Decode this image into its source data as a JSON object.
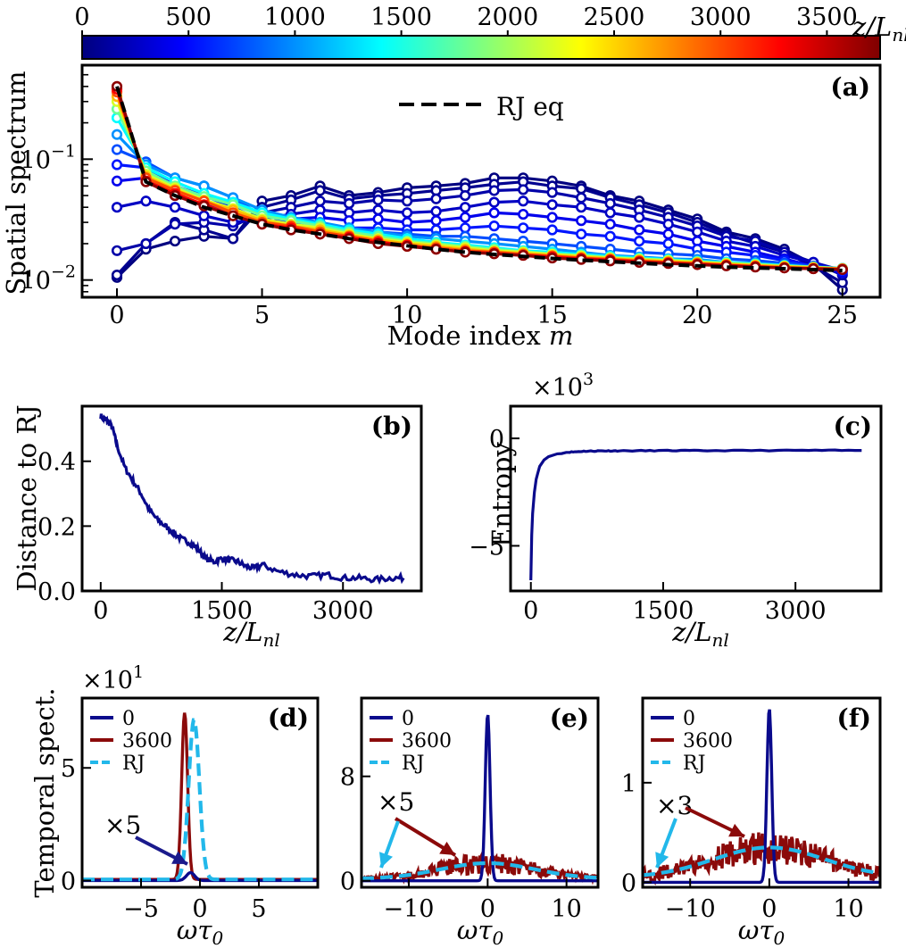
{
  "figure": {
    "colorbar": {
      "ticks": [
        "0",
        "500",
        "1000",
        "1500",
        "2000",
        "2500",
        "3000",
        "3500"
      ],
      "tick_values": [
        0,
        500,
        1000,
        1500,
        2000,
        2500,
        3000,
        3500
      ],
      "range": [
        0,
        3750
      ],
      "label": "z/L",
      "label_sub": "nl",
      "colormap": "jet"
    },
    "a": {
      "tag": "(a)",
      "xlabel": "Mode index",
      "xlabel_var": "m",
      "ylabel": "Spatial spectrum",
      "legend_label": "RJ eq",
      "xticks": [
        "0",
        "5",
        "10",
        "15",
        "20",
        "25"
      ],
      "ytick_base": "10",
      "ytick_exps": [
        "−2",
        "−1"
      ]
    },
    "b": {
      "tag": "(b)",
      "ylabel": "Distance to RJ",
      "xlabel": "z/L",
      "xlabel_sub": "nl",
      "xticks": [
        "0",
        "1500",
        "3000"
      ],
      "yticks": [
        "0.0",
        "0.2",
        "0.4"
      ]
    },
    "c": {
      "tag": "(c)",
      "ylabel": "Entropy",
      "xlabel": "z/L",
      "xlabel_sub": "nl",
      "multiplier_base": "×10",
      "multiplier_exp": "3",
      "xticks": [
        "0",
        "1500",
        "3000"
      ],
      "yticks": [
        "−5",
        "0"
      ]
    },
    "d": {
      "tag": "(d)",
      "ylabel": "Temporal spect.",
      "xlabel": "ωτ",
      "xlabel_sub": "0",
      "multiplier_base": "×10",
      "multiplier_exp": "1",
      "legend": [
        "0",
        "3600",
        "RJ"
      ],
      "annotation": "×5",
      "xticks": [
        "−5",
        "0",
        "5"
      ],
      "yticks": [
        "0",
        "5"
      ]
    },
    "e": {
      "tag": "(e)",
      "xlabel": "ωτ",
      "xlabel_sub": "0",
      "legend": [
        "0",
        "3600",
        "RJ"
      ],
      "annotation": "×5",
      "xticks": [
        "−10",
        "0",
        "10"
      ],
      "yticks": [
        "0",
        "8"
      ]
    },
    "f": {
      "tag": "(f)",
      "xlabel": "ωτ",
      "xlabel_sub": "0",
      "legend": [
        "0",
        "3600",
        "RJ"
      ],
      "annotation": "×3",
      "xticks": [
        "−10",
        "0",
        "10"
      ],
      "yticks": [
        "0",
        "1"
      ]
    }
  },
  "chart_data": [
    {
      "panel": "a",
      "type": "line",
      "title": "",
      "xlabel": "Mode index m",
      "ylabel": "Spatial spectrum",
      "yscale": "log",
      "xlim": [
        -1.2,
        26.3
      ],
      "ylim": [
        0.0072,
        0.6
      ],
      "colorbar_range": [
        0,
        3750
      ],
      "series": [
        {
          "name": "0",
          "z": 0,
          "values": [
            0.0105,
            0.018,
            0.021,
            0.023,
            0.022,
            0.045,
            0.05,
            0.06,
            0.05,
            0.053,
            0.058,
            0.06,
            0.063,
            0.07,
            0.07,
            0.066,
            0.06,
            0.05,
            0.045,
            0.038,
            0.032,
            0.025,
            0.022,
            0.018,
            0.0135,
            0.0083
          ]
        },
        {
          "name": "60",
          "z": 60,
          "values": [
            0.011,
            0.02,
            0.03,
            0.026,
            0.022,
            0.04,
            0.046,
            0.055,
            0.047,
            0.05,
            0.052,
            0.055,
            0.058,
            0.062,
            0.065,
            0.06,
            0.057,
            0.048,
            0.042,
            0.036,
            0.03,
            0.024,
            0.02,
            0.017,
            0.013,
            0.0095
          ]
        },
        {
          "name": "150",
          "z": 150,
          "values": [
            0.0175,
            0.02,
            0.029,
            0.03,
            0.028,
            0.036,
            0.04,
            0.045,
            0.043,
            0.046,
            0.045,
            0.047,
            0.05,
            0.055,
            0.056,
            0.053,
            0.048,
            0.043,
            0.038,
            0.033,
            0.028,
            0.023,
            0.021,
            0.017,
            0.014,
            0.011
          ]
        },
        {
          "name": "250",
          "z": 250,
          "values": [
            0.04,
            0.045,
            0.04,
            0.034,
            0.03,
            0.032,
            0.035,
            0.038,
            0.036,
            0.038,
            0.036,
            0.037,
            0.04,
            0.044,
            0.045,
            0.042,
            0.04,
            0.036,
            0.033,
            0.029,
            0.025,
            0.021,
            0.019,
            0.016,
            0.014,
            0.012
          ]
        },
        {
          "name": "400",
          "z": 400,
          "values": [
            0.066,
            0.07,
            0.05,
            0.042,
            0.036,
            0.03,
            0.032,
            0.033,
            0.031,
            0.032,
            0.03,
            0.031,
            0.033,
            0.036,
            0.035,
            0.033,
            0.031,
            0.029,
            0.026,
            0.024,
            0.021,
            0.019,
            0.017,
            0.015,
            0.013,
            0.0115
          ]
        },
        {
          "name": "550",
          "z": 550,
          "values": [
            0.09,
            0.085,
            0.06,
            0.05,
            0.04,
            0.031,
            0.03,
            0.029,
            0.027,
            0.027,
            0.026,
            0.026,
            0.027,
            0.028,
            0.027,
            0.026,
            0.024,
            0.023,
            0.021,
            0.02,
            0.018,
            0.017,
            0.016,
            0.0145,
            0.013,
            0.012
          ]
        },
        {
          "name": "750",
          "z": 750,
          "values": [
            0.12,
            0.095,
            0.07,
            0.06,
            0.048,
            0.034,
            0.031,
            0.028,
            0.026,
            0.025,
            0.024,
            0.023,
            0.023,
            0.022,
            0.021,
            0.02,
            0.019,
            0.018,
            0.017,
            0.0165,
            0.016,
            0.015,
            0.0145,
            0.0138,
            0.013,
            0.0125
          ]
        },
        {
          "name": "1000",
          "z": 1000,
          "values": [
            0.16,
            0.09,
            0.07,
            0.06,
            0.048,
            0.038,
            0.033,
            0.03,
            0.027,
            0.025,
            0.023,
            0.022,
            0.021,
            0.02,
            0.019,
            0.018,
            0.017,
            0.016,
            0.0155,
            0.015,
            0.0148,
            0.014,
            0.0138,
            0.0133,
            0.0128,
            0.0125
          ]
        },
        {
          "name": "1400",
          "z": 1400,
          "values": [
            0.22,
            0.085,
            0.065,
            0.052,
            0.044,
            0.036,
            0.032,
            0.029,
            0.026,
            0.024,
            0.022,
            0.0205,
            0.0195,
            0.0185,
            0.0175,
            0.017,
            0.0163,
            0.0157,
            0.0152,
            0.0148,
            0.0143,
            0.014,
            0.0136,
            0.0132,
            0.0128,
            0.0125
          ]
        },
        {
          "name": "1800",
          "z": 1800,
          "values": [
            0.26,
            0.08,
            0.06,
            0.049,
            0.042,
            0.034,
            0.031,
            0.028,
            0.025,
            0.023,
            0.021,
            0.02,
            0.019,
            0.018,
            0.0172,
            0.0165,
            0.016,
            0.0154,
            0.015,
            0.0146,
            0.0142,
            0.0138,
            0.0135,
            0.0131,
            0.0128,
            0.0125
          ]
        },
        {
          "name": "2200",
          "z": 2200,
          "values": [
            0.3,
            0.075,
            0.058,
            0.046,
            0.039,
            0.032,
            0.029,
            0.027,
            0.024,
            0.022,
            0.0205,
            0.0195,
            0.0185,
            0.0175,
            0.017,
            0.0163,
            0.0158,
            0.0152,
            0.0148,
            0.0145,
            0.014,
            0.0137,
            0.0133,
            0.013,
            0.0127,
            0.0124
          ]
        },
        {
          "name": "2600",
          "z": 2600,
          "values": [
            0.33,
            0.072,
            0.056,
            0.045,
            0.038,
            0.031,
            0.028,
            0.026,
            0.0235,
            0.0215,
            0.02,
            0.019,
            0.018,
            0.0172,
            0.0166,
            0.016,
            0.0155,
            0.015,
            0.0146,
            0.0142,
            0.0139,
            0.0135,
            0.0132,
            0.0129,
            0.0126,
            0.0124
          ]
        },
        {
          "name": "3000",
          "z": 3000,
          "values": [
            0.36,
            0.07,
            0.055,
            0.045,
            0.036,
            0.03,
            0.028,
            0.025,
            0.023,
            0.021,
            0.019,
            0.0185,
            0.0175,
            0.017,
            0.0163,
            0.0158,
            0.0152,
            0.0148,
            0.0144,
            0.014,
            0.0137,
            0.0133,
            0.013,
            0.0127,
            0.0125,
            0.0123
          ]
        },
        {
          "name": "3300",
          "z": 3300,
          "values": [
            0.38,
            0.066,
            0.052,
            0.042,
            0.034,
            0.029,
            0.027,
            0.024,
            0.0225,
            0.0205,
            0.0195,
            0.018,
            0.0172,
            0.0166,
            0.016,
            0.0155,
            0.015,
            0.0146,
            0.0142,
            0.0138,
            0.0135,
            0.0132,
            0.0129,
            0.0126,
            0.0124,
            0.0123
          ]
        },
        {
          "name": "3700",
          "z": 3700,
          "values": [
            0.4,
            0.065,
            0.05,
            0.041,
            0.034,
            0.029,
            0.026,
            0.024,
            0.022,
            0.02,
            0.019,
            0.018,
            0.017,
            0.0165,
            0.016,
            0.0152,
            0.0148,
            0.0144,
            0.014,
            0.0137,
            0.0134,
            0.0131,
            0.0128,
            0.0126,
            0.0124,
            0.0122
          ]
        }
      ],
      "rj_eq": {
        "name": "RJ eq",
        "values": [
          0.4,
          0.065,
          0.05,
          0.04,
          0.034,
          0.029,
          0.026,
          0.024,
          0.022,
          0.0205,
          0.0192,
          0.018,
          0.017,
          0.0163,
          0.0157,
          0.0151,
          0.0146,
          0.0142,
          0.0138,
          0.0134,
          0.0131,
          0.0128,
          0.0126,
          0.0124,
          0.0122,
          0.012
        ]
      }
    },
    {
      "panel": "b",
      "type": "line",
      "xlabel": "z/Lnl",
      "ylabel": "Distance to RJ",
      "xlim": [
        -230,
        3970
      ],
      "ylim": [
        0,
        0.57
      ],
      "series": [
        {
          "name": "distance",
          "x": [
            0,
            50,
            100,
            150,
            200,
            300,
            400,
            500,
            600,
            700,
            800,
            900,
            1000,
            1100,
            1200,
            1300,
            1400,
            1500,
            1600,
            1700,
            1800,
            1900,
            2000,
            2200,
            2400,
            2600,
            2800,
            3000,
            3200,
            3400,
            3600,
            3750
          ],
          "values": [
            0.54,
            0.53,
            0.52,
            0.5,
            0.45,
            0.38,
            0.34,
            0.3,
            0.25,
            0.22,
            0.2,
            0.18,
            0.16,
            0.15,
            0.13,
            0.1,
            0.09,
            0.1,
            0.095,
            0.09,
            0.075,
            0.07,
            0.08,
            0.06,
            0.05,
            0.045,
            0.05,
            0.04,
            0.04,
            0.035,
            0.04,
            0.04
          ]
        }
      ]
    },
    {
      "panel": "c",
      "type": "line",
      "xlabel": "z/Lnl",
      "ylabel": "Entropy (×10^3)",
      "xlim": [
        -230,
        3970
      ],
      "ylim": [
        -7.1,
        1.5
      ],
      "series": [
        {
          "name": "entropy",
          "x": [
            0,
            10,
            20,
            40,
            60,
            100,
            150,
            200,
            300,
            400,
            600,
            800,
            1000,
            1500,
            2000,
            3000,
            3750
          ],
          "values": [
            -6.6,
            -4.5,
            -3.5,
            -2.5,
            -1.9,
            -1.3,
            -1.0,
            -0.85,
            -0.72,
            -0.65,
            -0.6,
            -0.58,
            -0.58,
            -0.57,
            -0.57,
            -0.56,
            -0.56
          ]
        }
      ]
    },
    {
      "panel": "d",
      "type": "line",
      "xlabel": "ωτ0",
      "ylabel": "Temporal spect. (×10^1)",
      "xlim": [
        -10,
        10
      ],
      "ylim": [
        -0.3,
        8.1
      ],
      "annotation": "×5",
      "series": [
        {
          "name": "0",
          "center": -0.8,
          "width": 0.35,
          "peak": 0.35,
          "base": 0.0
        },
        {
          "name": "3600",
          "center": -1.3,
          "width": 0.25,
          "peak": 7.4,
          "base": 0.05
        },
        {
          "name": "RJ",
          "center": -0.5,
          "width": 0.45,
          "peak": 7.1,
          "base": 0.05
        }
      ]
    },
    {
      "panel": "e",
      "type": "line",
      "xlabel": "ωτ0",
      "xlim": [
        -16,
        14
      ],
      "ylim": [
        -0.5,
        14
      ],
      "annotation": "×5",
      "series": [
        {
          "name": "0",
          "center": 0,
          "width": 0.3,
          "peak": 12.8,
          "base": 0.0
        },
        {
          "name": "3600",
          "center": 0,
          "width": 6.0,
          "peak": 1.2,
          "base": 0.15,
          "noise": 0.7
        },
        {
          "name": "RJ",
          "center": 0,
          "width": 6.0,
          "peak": 1.2,
          "base": 0.15
        }
      ]
    },
    {
      "panel": "f",
      "type": "line",
      "xlabel": "ωτ0",
      "xlim": [
        -16,
        14
      ],
      "ylim": [
        -0.05,
        1.85
      ],
      "annotation": "×3",
      "series": [
        {
          "name": "0",
          "center": 0,
          "width": 0.3,
          "peak": 1.75,
          "base": 0.0
        },
        {
          "name": "3600",
          "center": 0,
          "width": 7.0,
          "peak": 0.3,
          "base": 0.05,
          "noise": 0.55
        },
        {
          "name": "RJ",
          "center": 0,
          "width": 7.0,
          "peak": 0.3,
          "base": 0.05
        }
      ]
    }
  ],
  "colors": {
    "navy": "#0a0a8c",
    "darkred": "#8b0a0a",
    "rj_blue": "#22b8ea",
    "arrow_navy": "#1a1a8c",
    "arrow_red": "#8b0a0a"
  }
}
